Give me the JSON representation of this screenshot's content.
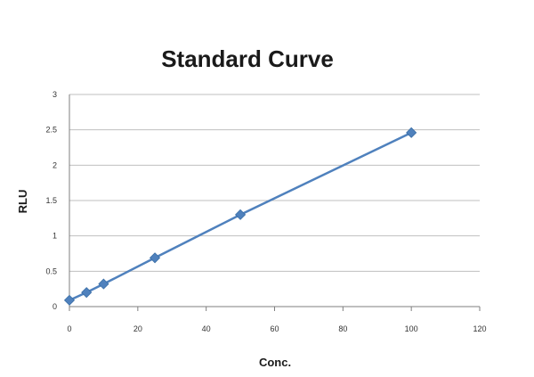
{
  "chart_data": {
    "type": "scatter",
    "title": "Standard Curve",
    "xlabel": "Conc.",
    "ylabel": "RLU",
    "xlim": [
      0,
      120
    ],
    "ylim": [
      0,
      3
    ],
    "x_ticks": [
      "0",
      "20",
      "40",
      "60",
      "80",
      "100",
      "120"
    ],
    "y_ticks": [
      "0",
      "0.5",
      "1",
      "1.5",
      "2",
      "2.5",
      "3"
    ],
    "grid": "horizontal",
    "legend": "none",
    "series": [
      {
        "color": "#4f81bd",
        "x": [
          0,
          5,
          10,
          25,
          50,
          100
        ],
        "y": [
          0.09,
          0.2,
          0.32,
          0.69,
          1.3,
          2.46
        ]
      }
    ]
  }
}
